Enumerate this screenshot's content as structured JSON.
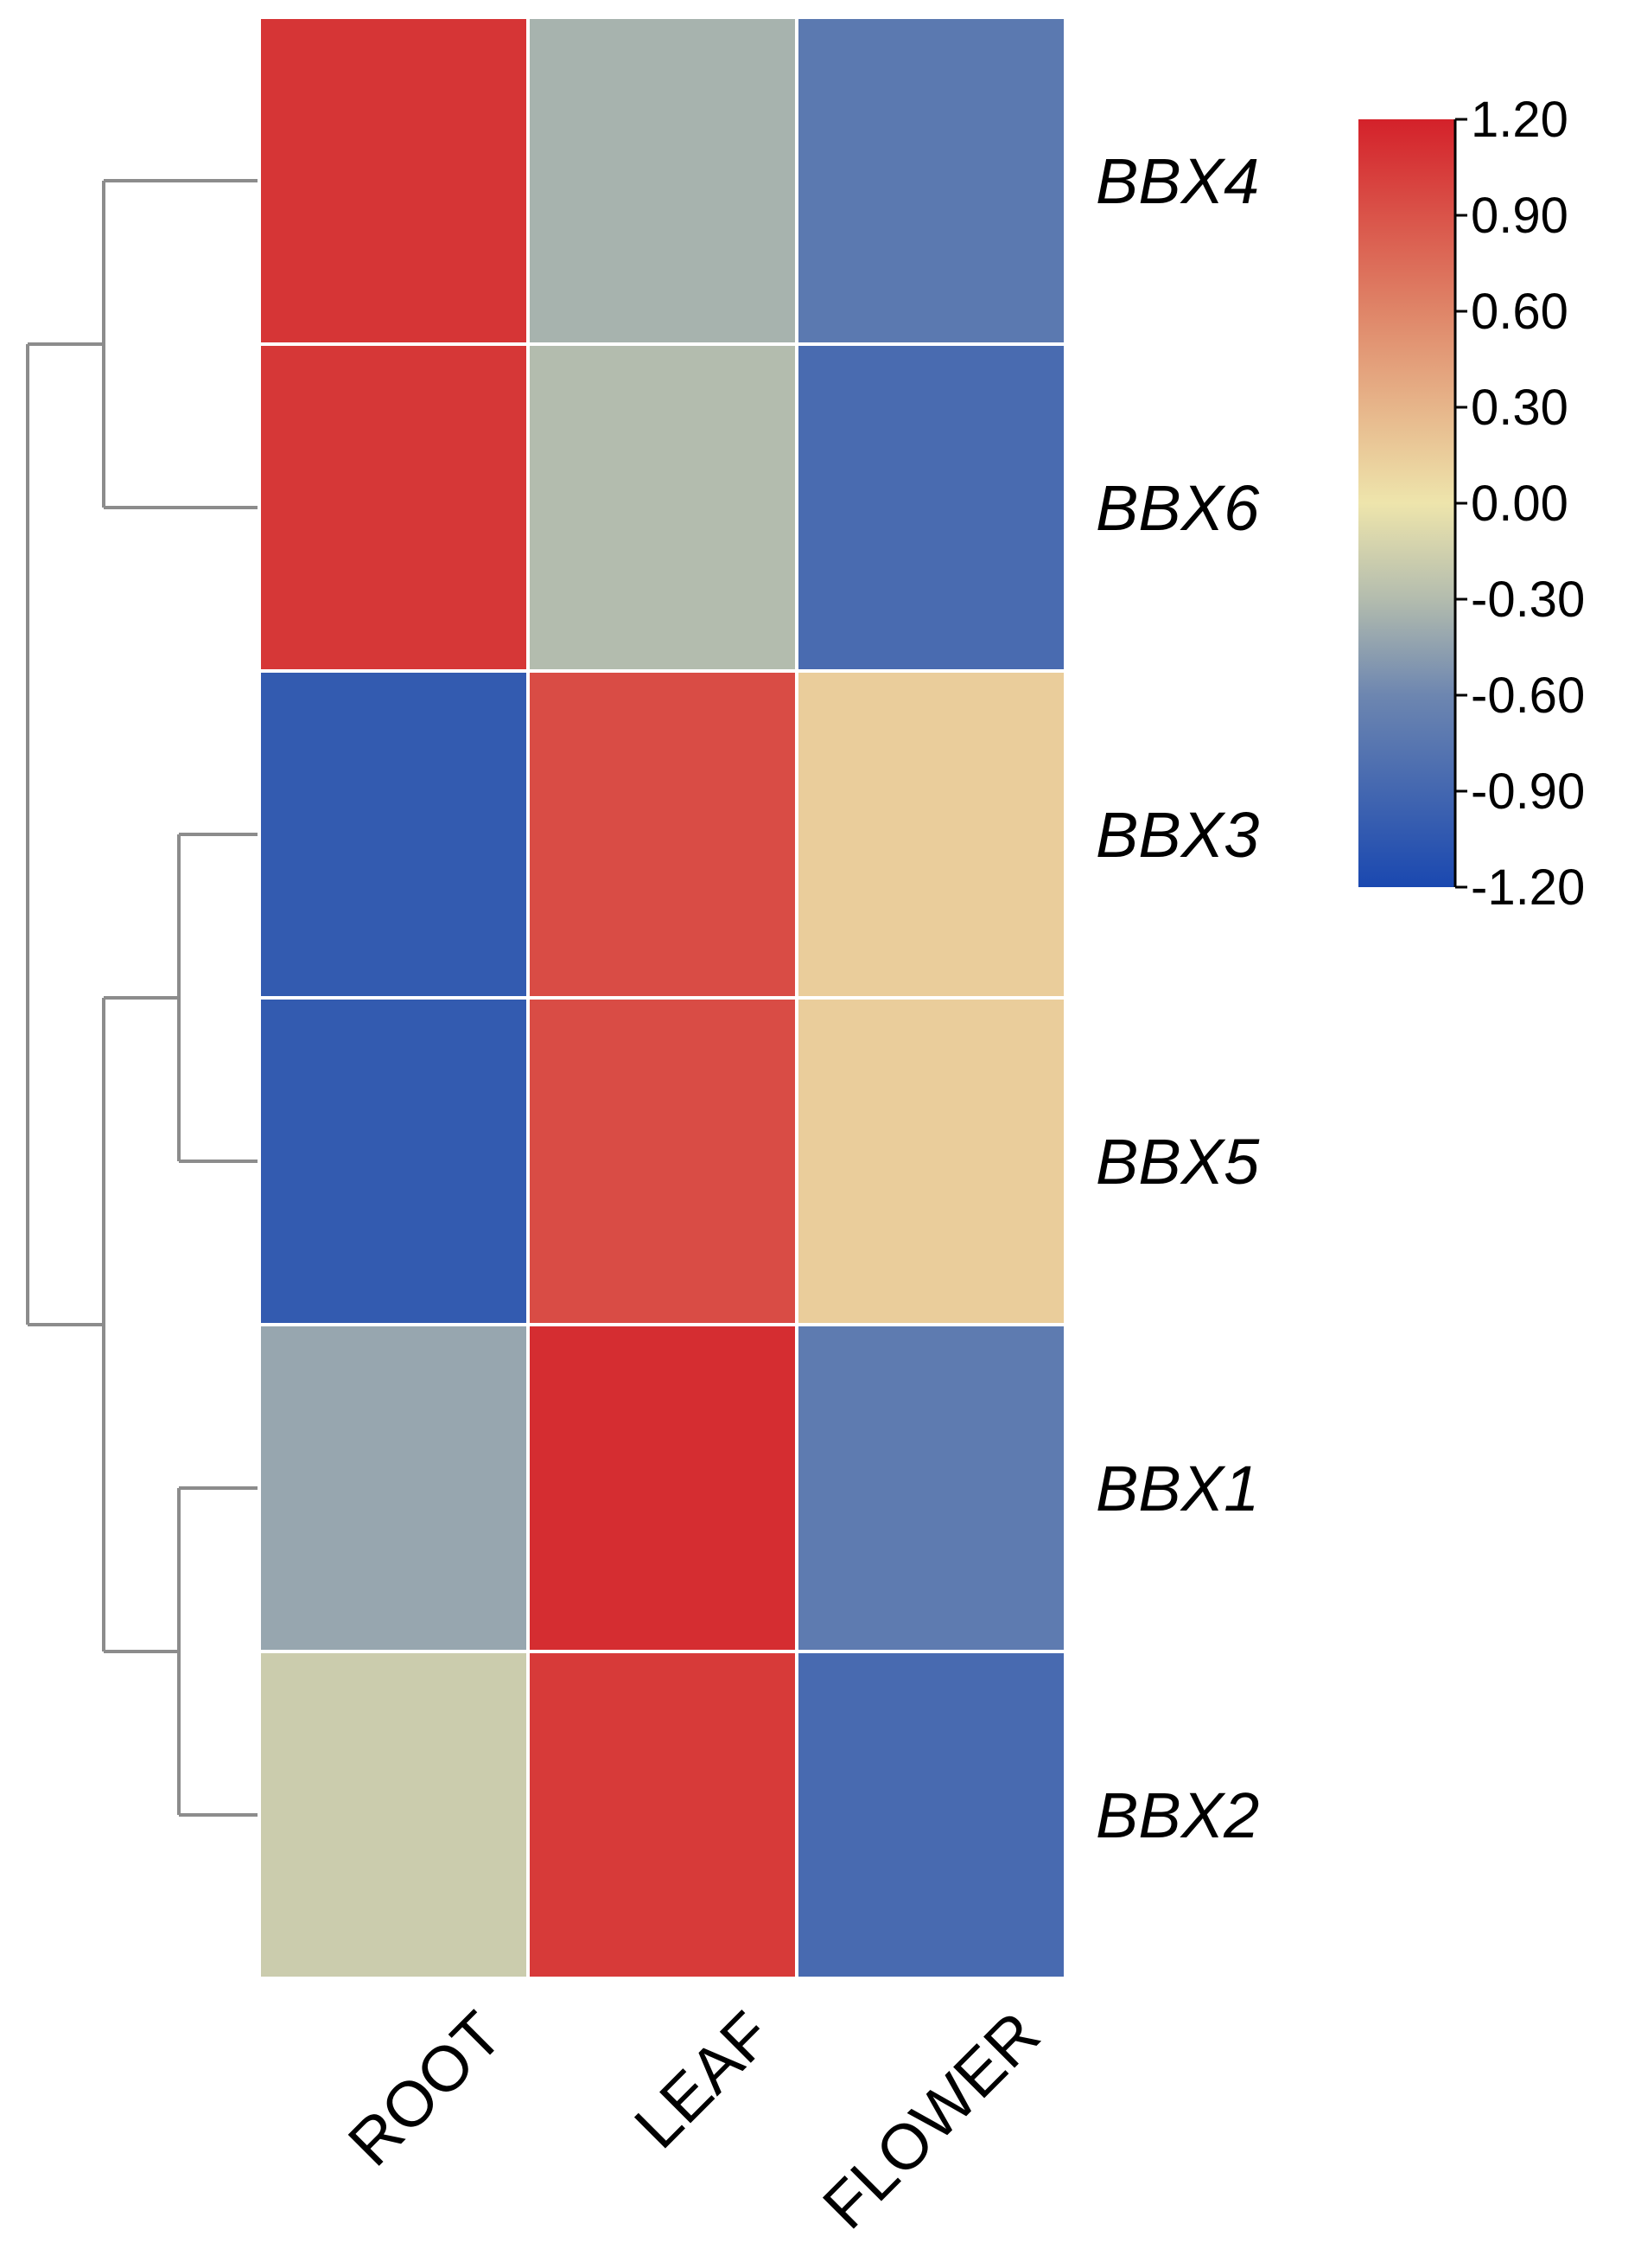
{
  "chart_data": {
    "type": "heatmap",
    "title": "",
    "columns": [
      "ROOT",
      "LEAF",
      "FLOWER"
    ],
    "rows": [
      "BBX4",
      "BBX6",
      "BBX3",
      "BBX5",
      "BBX1",
      "BBX2"
    ],
    "values": [
      [
        1.08,
        -0.35,
        -0.73
      ],
      [
        1.07,
        -0.3,
        -0.86
      ],
      [
        -1.02,
        0.94,
        0.15
      ],
      [
        -1.02,
        0.94,
        0.15
      ],
      [
        -0.42,
        1.13,
        -0.71
      ],
      [
        -0.18,
        1.05,
        -0.87
      ]
    ],
    "color_scale": {
      "min": -1.2,
      "max": 1.2,
      "stops": [
        {
          "value": -1.2,
          "color": "#1a48b0"
        },
        {
          "value": -0.6,
          "color": "#6d86b0"
        },
        {
          "value": -0.3,
          "color": "#b3bcae"
        },
        {
          "value": 0.0,
          "color": "#eee5ac"
        },
        {
          "value": 0.6,
          "color": "#df8568"
        },
        {
          "value": 1.2,
          "color": "#d4212a"
        }
      ],
      "ticks": [
        "1.20",
        "0.90",
        "0.60",
        "0.30",
        "0.00",
        "-0.30",
        "-0.60",
        "-0.90",
        "-1.20"
      ],
      "legend_position": "top-right"
    },
    "dendrogram": {
      "clusters": [
        [
          "BBX4",
          "BBX6"
        ],
        [
          [
            "BBX3",
            "BBX5"
          ],
          [
            "BBX1",
            "BBX2"
          ]
        ]
      ],
      "line_color": "#8c8c8c"
    },
    "cell_border_color": "#ffffff"
  }
}
